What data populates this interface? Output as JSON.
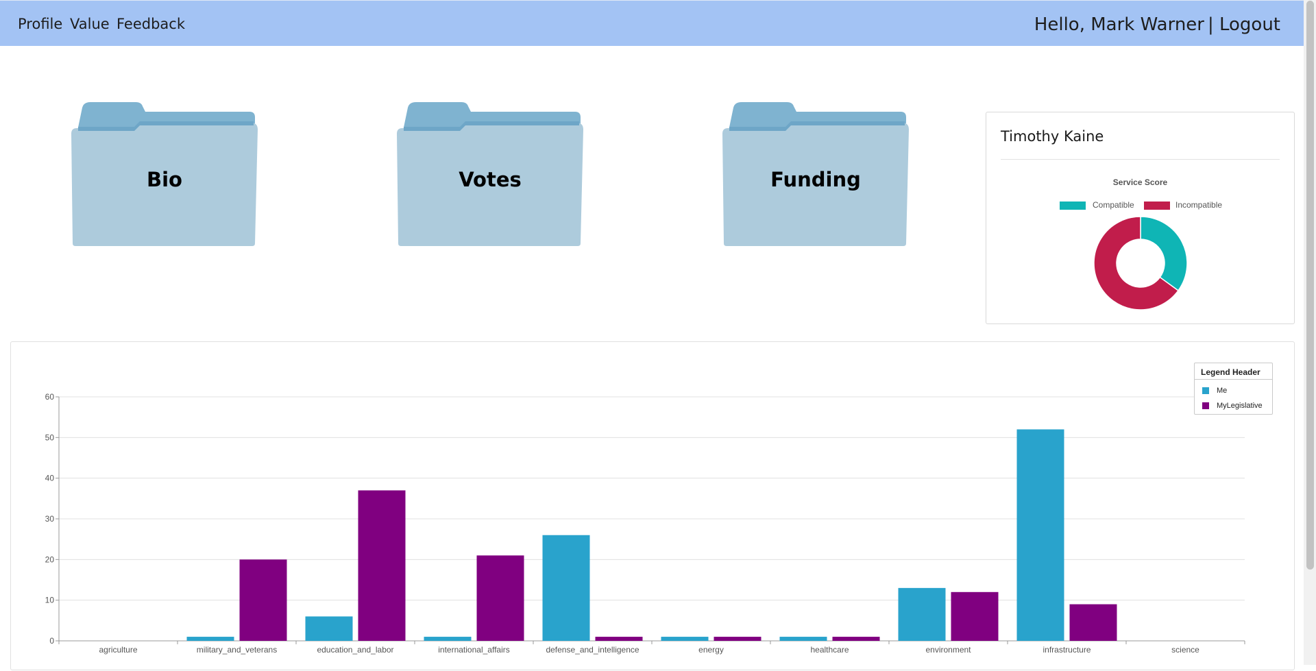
{
  "nav": {
    "links": [
      "Profile",
      "Value",
      "Feedback"
    ],
    "greeting": "Hello, Mark Warner",
    "logout": "| Logout"
  },
  "folders": [
    {
      "label": "Bio",
      "icon": "folder-icon"
    },
    {
      "label": "Votes",
      "icon": "folder-icon"
    },
    {
      "label": "Funding",
      "icon": "folder-icon"
    }
  ],
  "score_card": {
    "name": "Timothy Kaine",
    "chart_title": "Service Score",
    "legend": [
      {
        "label": "Compatible",
        "color": "#0fb5b5"
      },
      {
        "label": "Incompatible",
        "color": "#c11d4b"
      }
    ]
  },
  "chart_data": [
    {
      "type": "pie",
      "title": "Service Score",
      "labels": [
        "Compatible",
        "Incompatible"
      ],
      "values": [
        35,
        65
      ],
      "colors": [
        "#0fb5b5",
        "#c11d4b"
      ],
      "donut": true,
      "legend_position": "top"
    },
    {
      "type": "bar",
      "categories": [
        "agriculture",
        "military_and_veterans",
        "education_and_labor",
        "international_affairs",
        "defense_and_intelligence",
        "energy",
        "healthcare",
        "environment",
        "infrastructure",
        "science"
      ],
      "series": [
        {
          "name": "Me",
          "color": "#29a3cc",
          "values": [
            0,
            1,
            6,
            1,
            26,
            1,
            1,
            13,
            52,
            0
          ]
        },
        {
          "name": "MyLegislative",
          "color": "#800080",
          "values": [
            0,
            20,
            37,
            21,
            1,
            1,
            1,
            12,
            9,
            0
          ]
        }
      ],
      "ylim": [
        0,
        60
      ],
      "yticks": [
        0,
        10,
        20,
        30,
        40,
        50,
        60
      ],
      "grid": true,
      "legend_title": "Legend Header",
      "legend_position": "top-right"
    }
  ]
}
